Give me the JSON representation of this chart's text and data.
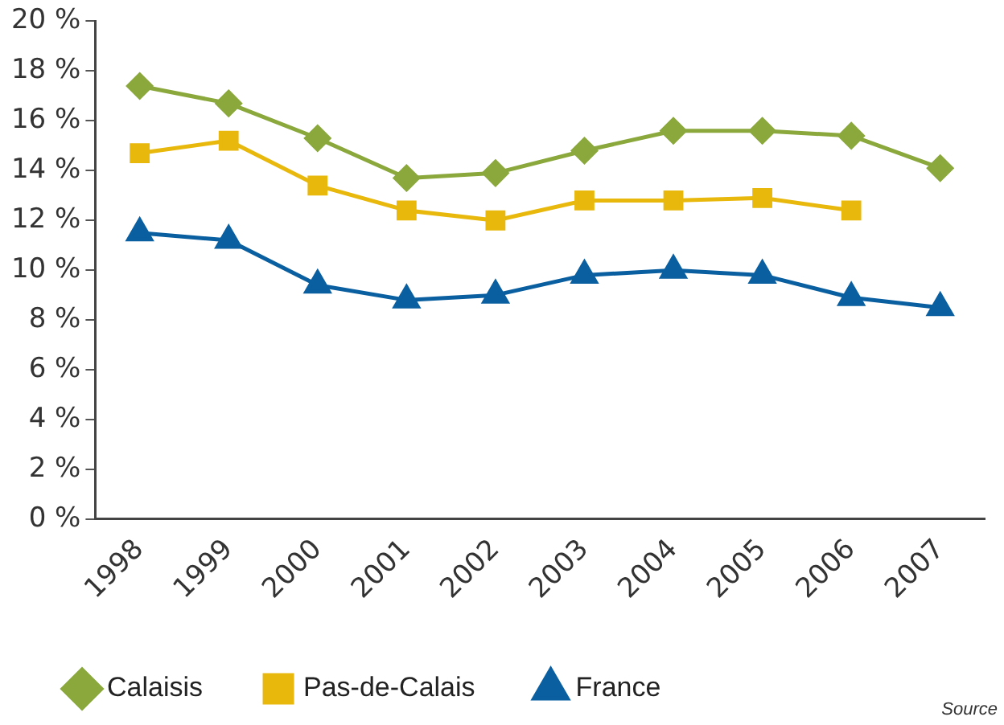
{
  "chart_data": {
    "type": "line",
    "categories": [
      "1998",
      "1999",
      "2000",
      "2001",
      "2002",
      "2003",
      "2004",
      "2005",
      "2006",
      "2007"
    ],
    "series": [
      {
        "name": "Calaisis",
        "color": "#8aa83c",
        "marker": "diamond",
        "values": [
          17.4,
          16.7,
          15.3,
          13.7,
          13.9,
          14.8,
          15.6,
          15.6,
          15.4,
          14.1
        ]
      },
      {
        "name": "Pas-de-Calais",
        "color": "#e8b80c",
        "marker": "square",
        "values": [
          14.7,
          15.2,
          13.4,
          12.4,
          12.0,
          12.8,
          12.8,
          12.9,
          12.4,
          null
        ]
      },
      {
        "name": "France",
        "color": "#0a5fa0",
        "marker": "triangle",
        "values": [
          11.5,
          11.2,
          9.4,
          8.8,
          9.0,
          9.8,
          10.0,
          9.8,
          8.9,
          8.5
        ]
      }
    ],
    "ylim": [
      0,
      20
    ],
    "yticks": [
      {
        "value": 0,
        "label": "0 %"
      },
      {
        "value": 2,
        "label": "2 %"
      },
      {
        "value": 4,
        "label": "4 %"
      },
      {
        "value": 6,
        "label": "6 %"
      },
      {
        "value": 8,
        "label": "8 %"
      },
      {
        "value": 10,
        "label": "10 %"
      },
      {
        "value": 12,
        "label": "12 %"
      },
      {
        "value": 14,
        "label": "14 %"
      },
      {
        "value": 16,
        "label": "16 %"
      },
      {
        "value": 18,
        "label": "18 %"
      },
      {
        "value": 20,
        "label": "20 %"
      }
    ],
    "grid": false,
    "legend": "bottom",
    "line_style": "solid",
    "annotations": [
      "Source"
    ]
  }
}
